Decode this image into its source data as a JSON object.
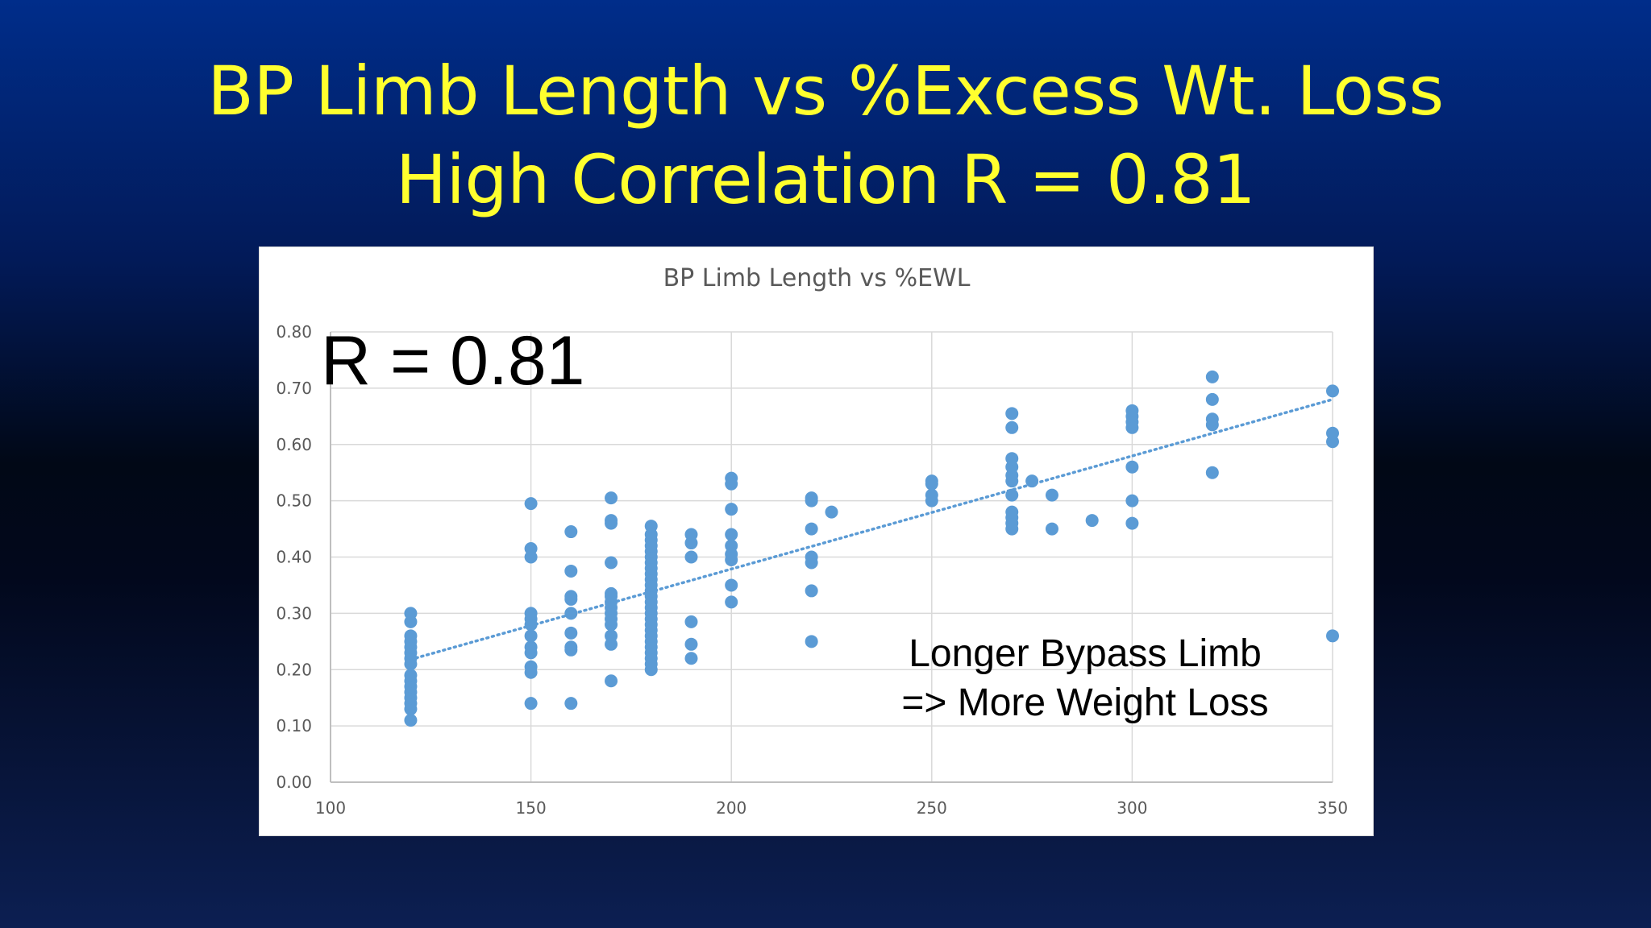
{
  "slide": {
    "title_line1": "BP Limb Length vs %Excess Wt. Loss",
    "title_line2": "High Correlation R = 0.81"
  },
  "chart_data": {
    "type": "scatter",
    "title": "BP Limb Length vs %EWL",
    "xlabel": "",
    "ylabel": "",
    "xlim": [
      100,
      350
    ],
    "ylim": [
      0,
      0.8
    ],
    "x_ticks": [
      "100",
      "150",
      "200",
      "250",
      "300",
      "350"
    ],
    "y_ticks": [
      "0.00",
      "0.10",
      "0.20",
      "0.30",
      "0.40",
      "0.50",
      "0.60",
      "0.70",
      "0.80"
    ],
    "grid": true,
    "marker_color": "#5b9bd5",
    "trendline": {
      "style": "dotted linear",
      "color": "#5b9bd5",
      "from": [
        120,
        0.218
      ],
      "to": [
        350,
        0.68
      ]
    },
    "annotations": [
      "R = 0.81",
      "Longer Bypass Limb",
      "=> More Weight Loss"
    ],
    "points": [
      [
        120,
        0.11
      ],
      [
        120,
        0.13
      ],
      [
        120,
        0.14
      ],
      [
        120,
        0.15
      ],
      [
        120,
        0.16
      ],
      [
        120,
        0.17
      ],
      [
        120,
        0.18
      ],
      [
        120,
        0.19
      ],
      [
        120,
        0.21
      ],
      [
        120,
        0.22
      ],
      [
        120,
        0.23
      ],
      [
        120,
        0.24
      ],
      [
        120,
        0.25
      ],
      [
        120,
        0.26
      ],
      [
        120,
        0.285
      ],
      [
        120,
        0.3
      ],
      [
        150,
        0.14
      ],
      [
        150,
        0.195
      ],
      [
        150,
        0.205
      ],
      [
        150,
        0.23
      ],
      [
        150,
        0.24
      ],
      [
        150,
        0.26
      ],
      [
        150,
        0.28
      ],
      [
        150,
        0.29
      ],
      [
        150,
        0.3
      ],
      [
        150,
        0.4
      ],
      [
        150,
        0.415
      ],
      [
        150,
        0.495
      ],
      [
        160,
        0.14
      ],
      [
        160,
        0.235
      ],
      [
        160,
        0.24
      ],
      [
        160,
        0.265
      ],
      [
        160,
        0.3
      ],
      [
        160,
        0.325
      ],
      [
        160,
        0.33
      ],
      [
        160,
        0.375
      ],
      [
        160,
        0.445
      ],
      [
        170,
        0.18
      ],
      [
        170,
        0.245
      ],
      [
        170,
        0.26
      ],
      [
        170,
        0.28
      ],
      [
        170,
        0.29
      ],
      [
        170,
        0.3
      ],
      [
        170,
        0.31
      ],
      [
        170,
        0.32
      ],
      [
        170,
        0.33
      ],
      [
        170,
        0.335
      ],
      [
        170,
        0.39
      ],
      [
        170,
        0.46
      ],
      [
        170,
        0.465
      ],
      [
        170,
        0.505
      ],
      [
        180,
        0.2
      ],
      [
        180,
        0.21
      ],
      [
        180,
        0.22
      ],
      [
        180,
        0.23
      ],
      [
        180,
        0.24
      ],
      [
        180,
        0.25
      ],
      [
        180,
        0.26
      ],
      [
        180,
        0.27
      ],
      [
        180,
        0.28
      ],
      [
        180,
        0.29
      ],
      [
        180,
        0.3
      ],
      [
        180,
        0.31
      ],
      [
        180,
        0.32
      ],
      [
        180,
        0.33
      ],
      [
        180,
        0.34
      ],
      [
        180,
        0.35
      ],
      [
        180,
        0.36
      ],
      [
        180,
        0.37
      ],
      [
        180,
        0.38
      ],
      [
        180,
        0.39
      ],
      [
        180,
        0.4
      ],
      [
        180,
        0.41
      ],
      [
        180,
        0.42
      ],
      [
        180,
        0.43
      ],
      [
        180,
        0.44
      ],
      [
        180,
        0.455
      ],
      [
        190,
        0.22
      ],
      [
        190,
        0.245
      ],
      [
        190,
        0.285
      ],
      [
        190,
        0.4
      ],
      [
        190,
        0.425
      ],
      [
        190,
        0.44
      ],
      [
        200,
        0.32
      ],
      [
        200,
        0.35
      ],
      [
        200,
        0.395
      ],
      [
        200,
        0.405
      ],
      [
        200,
        0.42
      ],
      [
        200,
        0.44
      ],
      [
        200,
        0.485
      ],
      [
        200,
        0.53
      ],
      [
        200,
        0.54
      ],
      [
        220,
        0.25
      ],
      [
        220,
        0.34
      ],
      [
        220,
        0.39
      ],
      [
        220,
        0.4
      ],
      [
        220,
        0.45
      ],
      [
        220,
        0.5
      ],
      [
        220,
        0.505
      ],
      [
        225,
        0.48
      ],
      [
        250,
        0.5
      ],
      [
        250,
        0.51
      ],
      [
        250,
        0.53
      ],
      [
        250,
        0.535
      ],
      [
        270,
        0.45
      ],
      [
        270,
        0.46
      ],
      [
        270,
        0.47
      ],
      [
        270,
        0.48
      ],
      [
        270,
        0.51
      ],
      [
        270,
        0.535
      ],
      [
        270,
        0.545
      ],
      [
        270,
        0.56
      ],
      [
        270,
        0.575
      ],
      [
        270,
        0.63
      ],
      [
        270,
        0.655
      ],
      [
        275,
        0.535
      ],
      [
        280,
        0.45
      ],
      [
        280,
        0.51
      ],
      [
        290,
        0.465
      ],
      [
        300,
        0.46
      ],
      [
        300,
        0.5
      ],
      [
        300,
        0.56
      ],
      [
        300,
        0.63
      ],
      [
        300,
        0.64
      ],
      [
        300,
        0.65
      ],
      [
        300,
        0.66
      ],
      [
        320,
        0.55
      ],
      [
        320,
        0.635
      ],
      [
        320,
        0.645
      ],
      [
        320,
        0.68
      ],
      [
        320,
        0.72
      ],
      [
        350,
        0.26
      ],
      [
        350,
        0.605
      ],
      [
        350,
        0.62
      ],
      [
        350,
        0.695
      ]
    ]
  }
}
